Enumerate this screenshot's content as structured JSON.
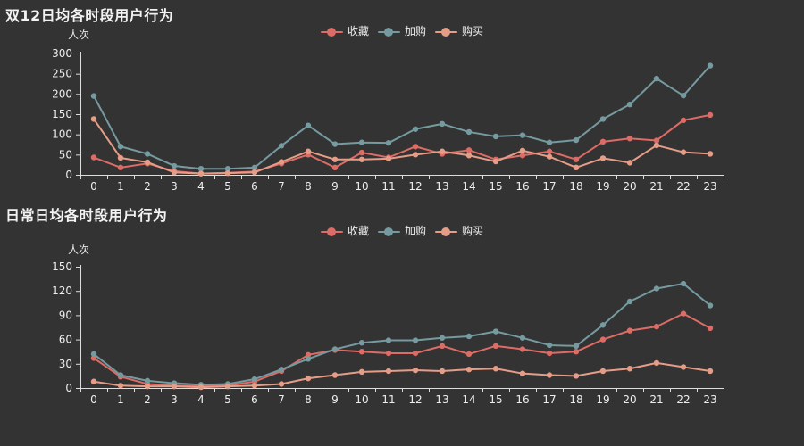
{
  "background": "#333333",
  "text_color": "#eeeeee",
  "axis_color": "#dddddd",
  "chart_data": [
    {
      "type": "line",
      "title": "双12日均各时段用户行为",
      "ylabel": "人次",
      "xlabel": "",
      "ylim": [
        0,
        300
      ],
      "y_interval": 50,
      "grid": false,
      "legend_position": "top-center",
      "categories": [
        0,
        1,
        2,
        3,
        4,
        5,
        6,
        7,
        8,
        9,
        10,
        11,
        12,
        13,
        14,
        15,
        16,
        17,
        18,
        19,
        20,
        21,
        22,
        23
      ],
      "series": [
        {
          "name": "收藏",
          "color": "#dd6b66",
          "values": [
            43,
            18,
            28,
            9,
            3,
            5,
            8,
            28,
            50,
            18,
            55,
            43,
            70,
            52,
            61,
            38,
            48,
            58,
            38,
            82,
            90,
            85,
            135,
            148
          ]
        },
        {
          "name": "加购",
          "color": "#759aa0",
          "values": [
            195,
            70,
            52,
            22,
            15,
            15,
            18,
            72,
            122,
            76,
            80,
            79,
            113,
            126,
            106,
            95,
            98,
            80,
            86,
            138,
            174,
            238,
            196,
            270
          ]
        },
        {
          "name": "购买",
          "color": "#e69d87",
          "values": [
            138,
            42,
            31,
            6,
            3,
            4,
            6,
            32,
            58,
            38,
            38,
            40,
            50,
            58,
            48,
            33,
            60,
            45,
            18,
            41,
            30,
            73,
            56,
            52
          ]
        }
      ]
    },
    {
      "type": "line",
      "title": "日常日均各时段用户行为",
      "ylabel": "人次",
      "xlabel": "",
      "ylim": [
        0,
        150
      ],
      "y_interval": 30,
      "grid": false,
      "legend_position": "top-center",
      "categories": [
        0,
        1,
        2,
        3,
        4,
        5,
        6,
        7,
        8,
        9,
        10,
        11,
        12,
        13,
        14,
        15,
        16,
        17,
        18,
        19,
        20,
        21,
        22,
        23
      ],
      "series": [
        {
          "name": "收藏",
          "color": "#dd6b66",
          "values": [
            37,
            14,
            5,
            3,
            2,
            3,
            8,
            21,
            41,
            47,
            45,
            43,
            43,
            52,
            42,
            52,
            48,
            43,
            45,
            60,
            71,
            76,
            92,
            74
          ]
        },
        {
          "name": "加购",
          "color": "#759aa0",
          "values": [
            42,
            16,
            9,
            6,
            4,
            5,
            11,
            23,
            36,
            48,
            56,
            59,
            59,
            62,
            64,
            70,
            62,
            53,
            52,
            78,
            107,
            123,
            129,
            102
          ]
        },
        {
          "name": "购买",
          "color": "#e69d87",
          "values": [
            8,
            3,
            2,
            2,
            1,
            2,
            3,
            5,
            12,
            16,
            20,
            21,
            22,
            21,
            23,
            24,
            18,
            16,
            15,
            21,
            24,
            31,
            26,
            21
          ]
        }
      ]
    }
  ]
}
